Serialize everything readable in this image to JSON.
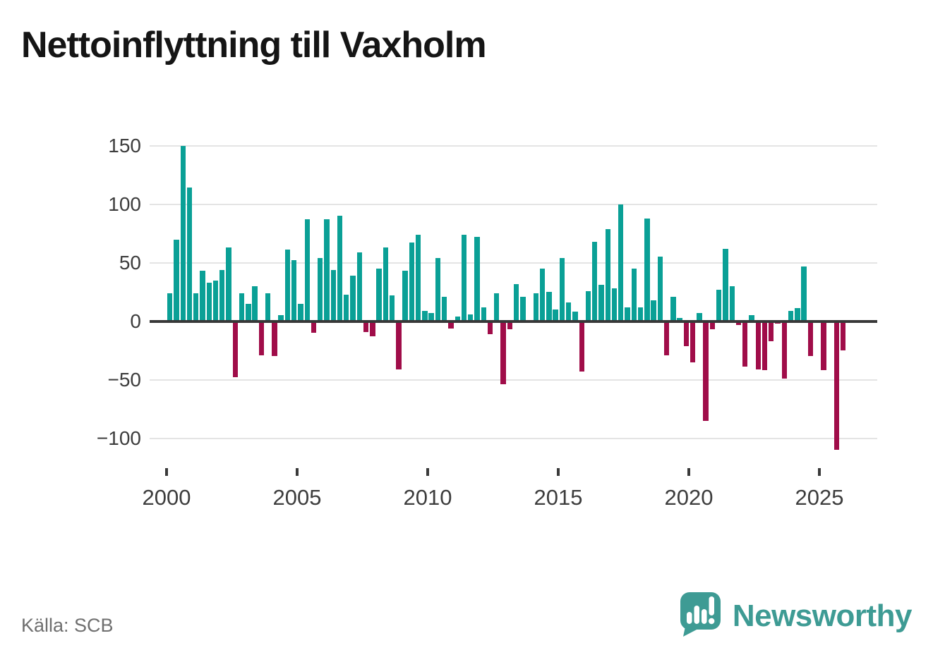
{
  "chart_data": {
    "type": "bar",
    "title": "Nettoinflyttning till Vaxholm",
    "frequency": "quarterly",
    "x_start": "2000-Q1",
    "x_end": "2025-Q4",
    "x_tick_labels": [
      "2000",
      "2005",
      "2010",
      "2015",
      "2020",
      "2025"
    ],
    "y_ticks": [
      150,
      100,
      50,
      0,
      -50,
      -100
    ],
    "ylim": [
      -120,
      160
    ],
    "grid": "horizontal",
    "values": [
      24,
      70,
      150,
      114,
      24,
      43,
      33,
      35,
      44,
      63,
      -48,
      24,
      15,
      30,
      -29,
      24,
      -30,
      5,
      61,
      52,
      15,
      87,
      -10,
      54,
      87,
      44,
      90,
      23,
      39,
      59,
      -9,
      -13,
      45,
      63,
      22,
      -41,
      43,
      67,
      74,
      9,
      7,
      54,
      21,
      -6,
      4,
      74,
      6,
      72,
      12,
      -11,
      24,
      -54,
      -7,
      32,
      21,
      0,
      24,
      45,
      25,
      10,
      54,
      16,
      8,
      -43,
      26,
      68,
      31,
      79,
      28,
      100,
      12,
      45,
      12,
      88,
      18,
      55,
      -29,
      21,
      3,
      -21,
      -35,
      7,
      -85,
      -7,
      27,
      62,
      30,
      -3,
      -39,
      5,
      -41,
      -42,
      -17,
      -2,
      -49,
      9,
      11,
      47,
      -30,
      0,
      -42,
      0,
      -110,
      -25
    ]
  },
  "colors": {
    "positive_bar": "#0aa096",
    "negative_bar": "#a00d49",
    "gridline": "#e4e4e4",
    "zero_line": "#383838",
    "axis_text": "#3d3d3d",
    "title_text": "#151515",
    "source_text": "#6f6f6f",
    "brand_teal": "#3e9b94"
  },
  "footer": {
    "source": "Källa: SCB",
    "brand": "Newsworthy"
  }
}
